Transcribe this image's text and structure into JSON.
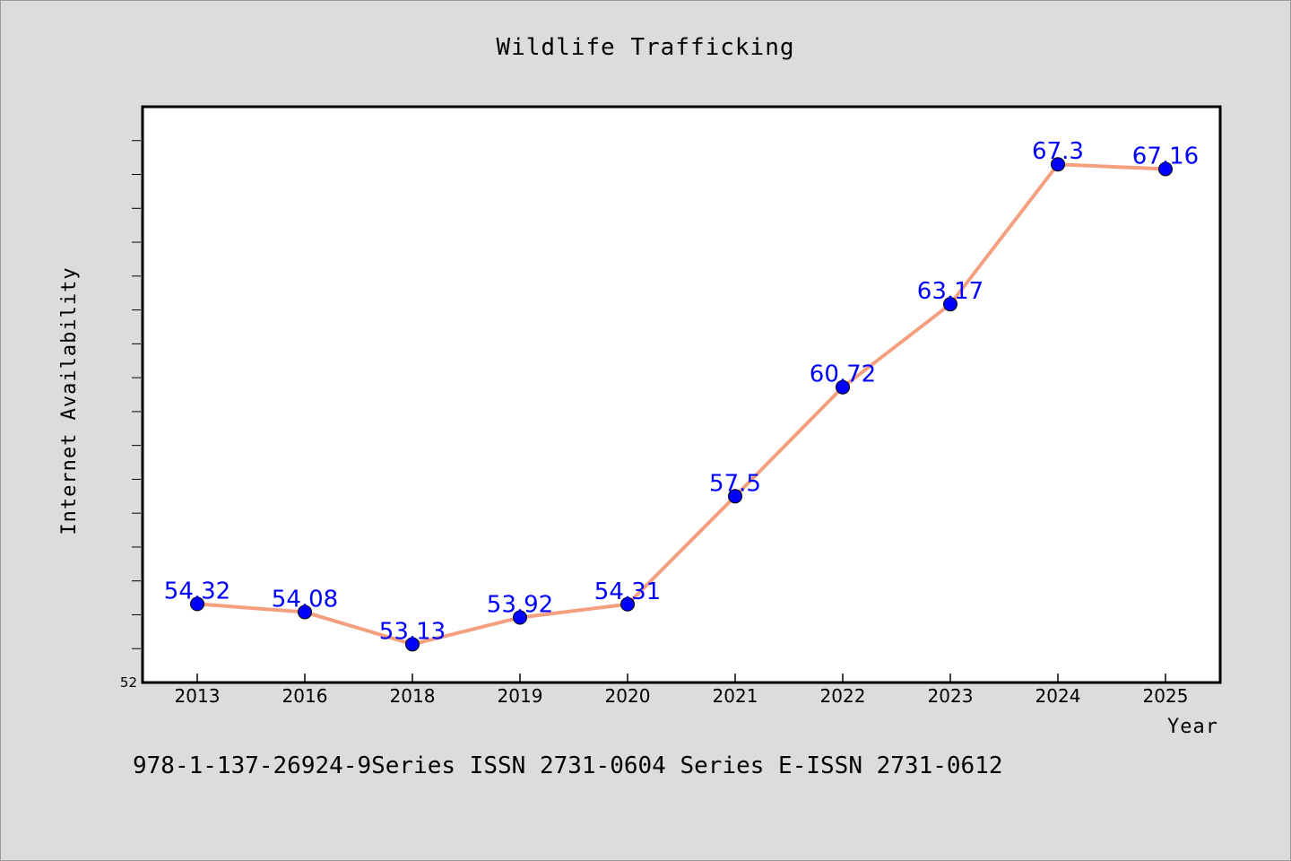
{
  "chart_data": {
    "type": "line",
    "title": "Wildlife Trafficking",
    "xlabel": "Year",
    "ylabel": "Internet Availability",
    "categories": [
      "2013",
      "2016",
      "2018",
      "2019",
      "2020",
      "2021",
      "2022",
      "2023",
      "2024",
      "2025"
    ],
    "series": [
      {
        "values": [
          54.32,
          54.08,
          53.13,
          53.92,
          54.31,
          57.5,
          60.72,
          63.17,
          67.3,
          67.16
        ],
        "labels": [
          "54.32",
          "54.08",
          "53.13",
          "53.92",
          "54.31",
          "57.5",
          "60.72",
          "63.17",
          "67.3",
          "67.16"
        ],
        "line_color": "#f4a07f",
        "marker_color": "#0000ff"
      }
    ],
    "ylim": [
      52,
      69
    ],
    "ytick_labels": [
      "52"
    ],
    "grid": false,
    "legend": "none"
  },
  "footer_text": "978-1-137-26924-9Series ISSN 2731-0604 Series E-ISSN 2731-0612"
}
